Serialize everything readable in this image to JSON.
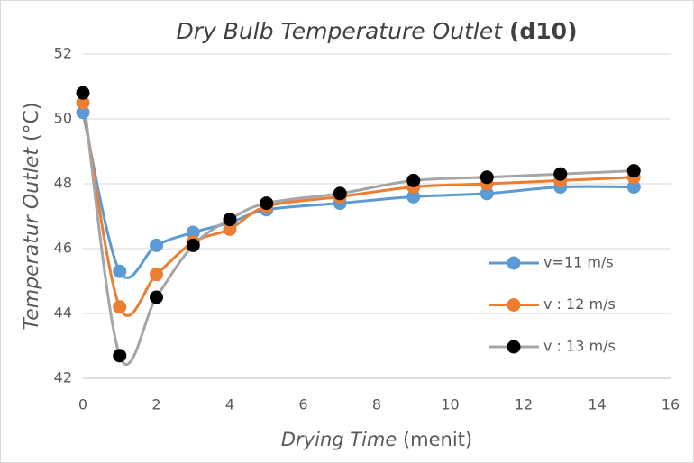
{
  "chart_data": {
    "type": "line",
    "title": [
      "Dry Bulb Temperature Outlet",
      "(d10)"
    ],
    "x_label": [
      "Drying Time",
      "(menit)"
    ],
    "y_label": [
      "Temperatur Outlet",
      "(°C)"
    ],
    "x": [
      0,
      1,
      2,
      3,
      4,
      5,
      7,
      9,
      11,
      13,
      15
    ],
    "series": [
      {
        "name": "v=11 m/s",
        "color": "#5b9bd5",
        "marker_color": "#5b9bd5",
        "values": [
          50.2,
          45.3,
          46.1,
          46.5,
          46.8,
          47.2,
          47.4,
          47.6,
          47.7,
          47.9,
          47.9
        ]
      },
      {
        "name": "v : 12 m/s",
        "color": "#ed7d31",
        "marker_color": "#ed7d31",
        "values": [
          50.5,
          44.2,
          45.2,
          46.2,
          46.6,
          47.3,
          47.6,
          47.9,
          48.0,
          48.1,
          48.2
        ]
      },
      {
        "name": "v : 13 m/s",
        "color": "#a5a5a5",
        "marker_color": "#000000",
        "values": [
          50.8,
          42.7,
          44.5,
          46.1,
          46.9,
          47.4,
          47.7,
          48.1,
          48.2,
          48.3,
          48.4
        ]
      }
    ],
    "xlim": [
      0,
      16
    ],
    "xticks": [
      0,
      2,
      4,
      6,
      8,
      10,
      12,
      14,
      16
    ],
    "ylim": [
      42,
      52
    ],
    "yticks": [
      42,
      44,
      46,
      48,
      50,
      52
    ],
    "grid": true,
    "legend": "right",
    "smooth": true
  }
}
